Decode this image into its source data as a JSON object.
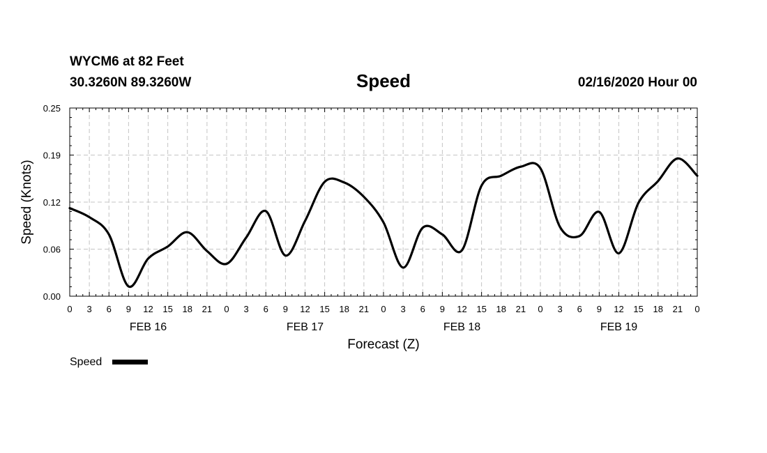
{
  "header": {
    "station": "WYCM6 at 82 Feet",
    "coords": "30.3260N 89.3260W",
    "title": "Speed",
    "datetime": "02/16/2020 Hour 00"
  },
  "legend": {
    "label": "Speed"
  },
  "chart_data": {
    "type": "line",
    "title": "Speed",
    "xlabel": "Forecast (Z)",
    "ylabel": "Speed (Knots)",
    "ylim": [
      0,
      0.25
    ],
    "yticks": [
      "0.00",
      "0.06",
      "0.12",
      "0.19",
      "0.25"
    ],
    "ytick_values": [
      0,
      0.0625,
      0.125,
      0.1875,
      0.25
    ],
    "xlim": [
      0,
      96
    ],
    "xtick_labels": [
      "0",
      "3",
      "6",
      "9",
      "12",
      "15",
      "18",
      "21",
      "0",
      "3",
      "6",
      "9",
      "12",
      "15",
      "18",
      "21",
      "0",
      "3",
      "6",
      "9",
      "12",
      "15",
      "18",
      "21",
      "0",
      "3",
      "6",
      "9",
      "12",
      "15",
      "18",
      "21",
      "0"
    ],
    "day_labels": [
      {
        "label": "FEB 16",
        "at_hour": 12
      },
      {
        "label": "FEB 17",
        "at_hour": 36
      },
      {
        "label": "FEB 18",
        "at_hour": 60
      },
      {
        "label": "FEB 19",
        "at_hour": 84
      }
    ],
    "grid": true,
    "legend_position": "bottom-left",
    "series_color": "#000000",
    "series": [
      {
        "name": "Speed",
        "x": [
          0,
          3,
          6,
          9,
          12,
          15,
          18,
          21,
          24,
          27,
          30,
          33,
          36,
          39,
          42,
          45,
          48,
          51,
          54,
          57,
          60,
          63,
          66,
          69,
          72,
          75,
          78,
          81,
          84,
          87,
          90,
          93,
          96
        ],
        "values": [
          0.117,
          0.105,
          0.082,
          0.013,
          0.05,
          0.066,
          0.085,
          0.06,
          0.043,
          0.078,
          0.113,
          0.054,
          0.1,
          0.152,
          0.151,
          0.132,
          0.098,
          0.038,
          0.091,
          0.082,
          0.061,
          0.147,
          0.16,
          0.172,
          0.17,
          0.092,
          0.08,
          0.112,
          0.057,
          0.124,
          0.153,
          0.183,
          0.16
        ]
      }
    ]
  }
}
